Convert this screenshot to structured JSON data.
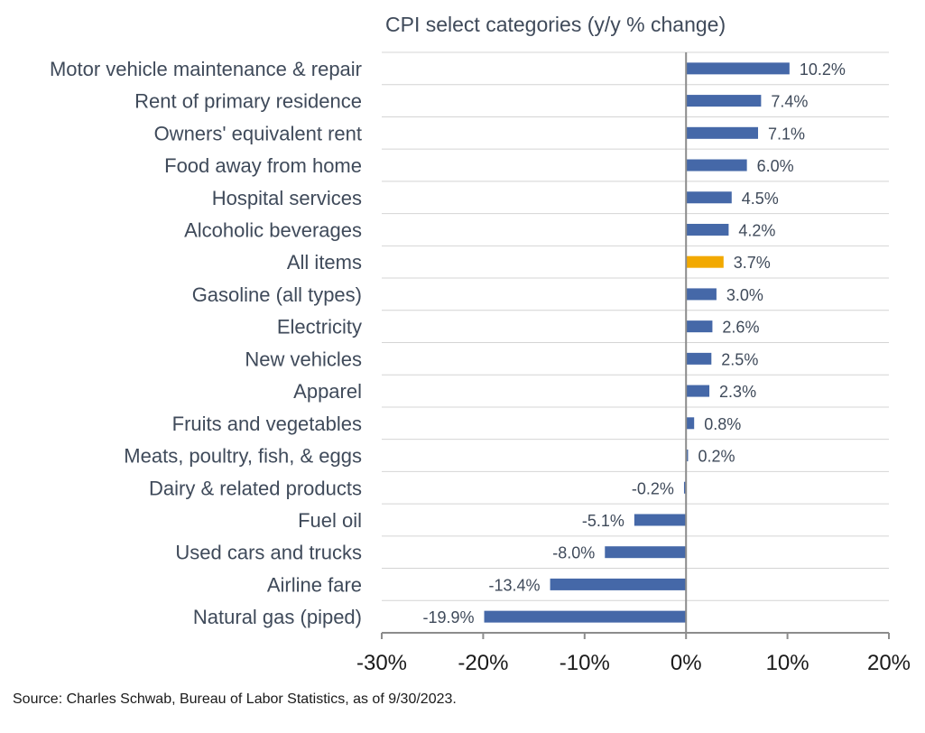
{
  "chart_data": {
    "type": "bar",
    "orientation": "horizontal",
    "title": "CPI select categories (y/y % change)",
    "categories": [
      "Motor vehicle maintenance & repair",
      "Rent of primary residence",
      "Owners' equivalent rent",
      "Food away from home",
      "Hospital services",
      "Alcoholic beverages",
      "All items",
      "Gasoline (all types)",
      "Electricity",
      "New vehicles",
      "Apparel",
      "Fruits and vegetables",
      "Meats, poultry, fish, & eggs",
      "Dairy & related products",
      "Fuel oil",
      "Used cars and trucks",
      "Airline fare",
      "Natural gas (piped)"
    ],
    "values": [
      10.2,
      7.4,
      7.1,
      6.0,
      4.5,
      4.2,
      3.7,
      3.0,
      2.6,
      2.5,
      2.3,
      0.8,
      0.2,
      -0.2,
      -5.1,
      -8.0,
      -13.4,
      -19.9
    ],
    "value_labels": [
      "10.2%",
      "7.4%",
      "7.1%",
      "6.0%",
      "4.5%",
      "4.2%",
      "3.7%",
      "3.0%",
      "2.6%",
      "2.5%",
      "2.3%",
      "0.8%",
      "0.2%",
      "-0.2%",
      "-5.1%",
      "-8.0%",
      "-13.4%",
      "-19.9%"
    ],
    "highlight_category": "All items",
    "xlim": [
      -30,
      20
    ],
    "xticks": [
      -30,
      -20,
      -10,
      0,
      10,
      20
    ],
    "xtick_labels": [
      "-30%",
      "-20%",
      "-10%",
      "0%",
      "10%",
      "20%"
    ],
    "xlabel": "",
    "ylabel": "",
    "grid": "horizontal",
    "colors": {
      "bar": "#4568a8",
      "highlight": "#f2a900"
    }
  },
  "source": "Source: Charles Schwab, Bureau of Labor Statistics, as of 9/30/2023."
}
